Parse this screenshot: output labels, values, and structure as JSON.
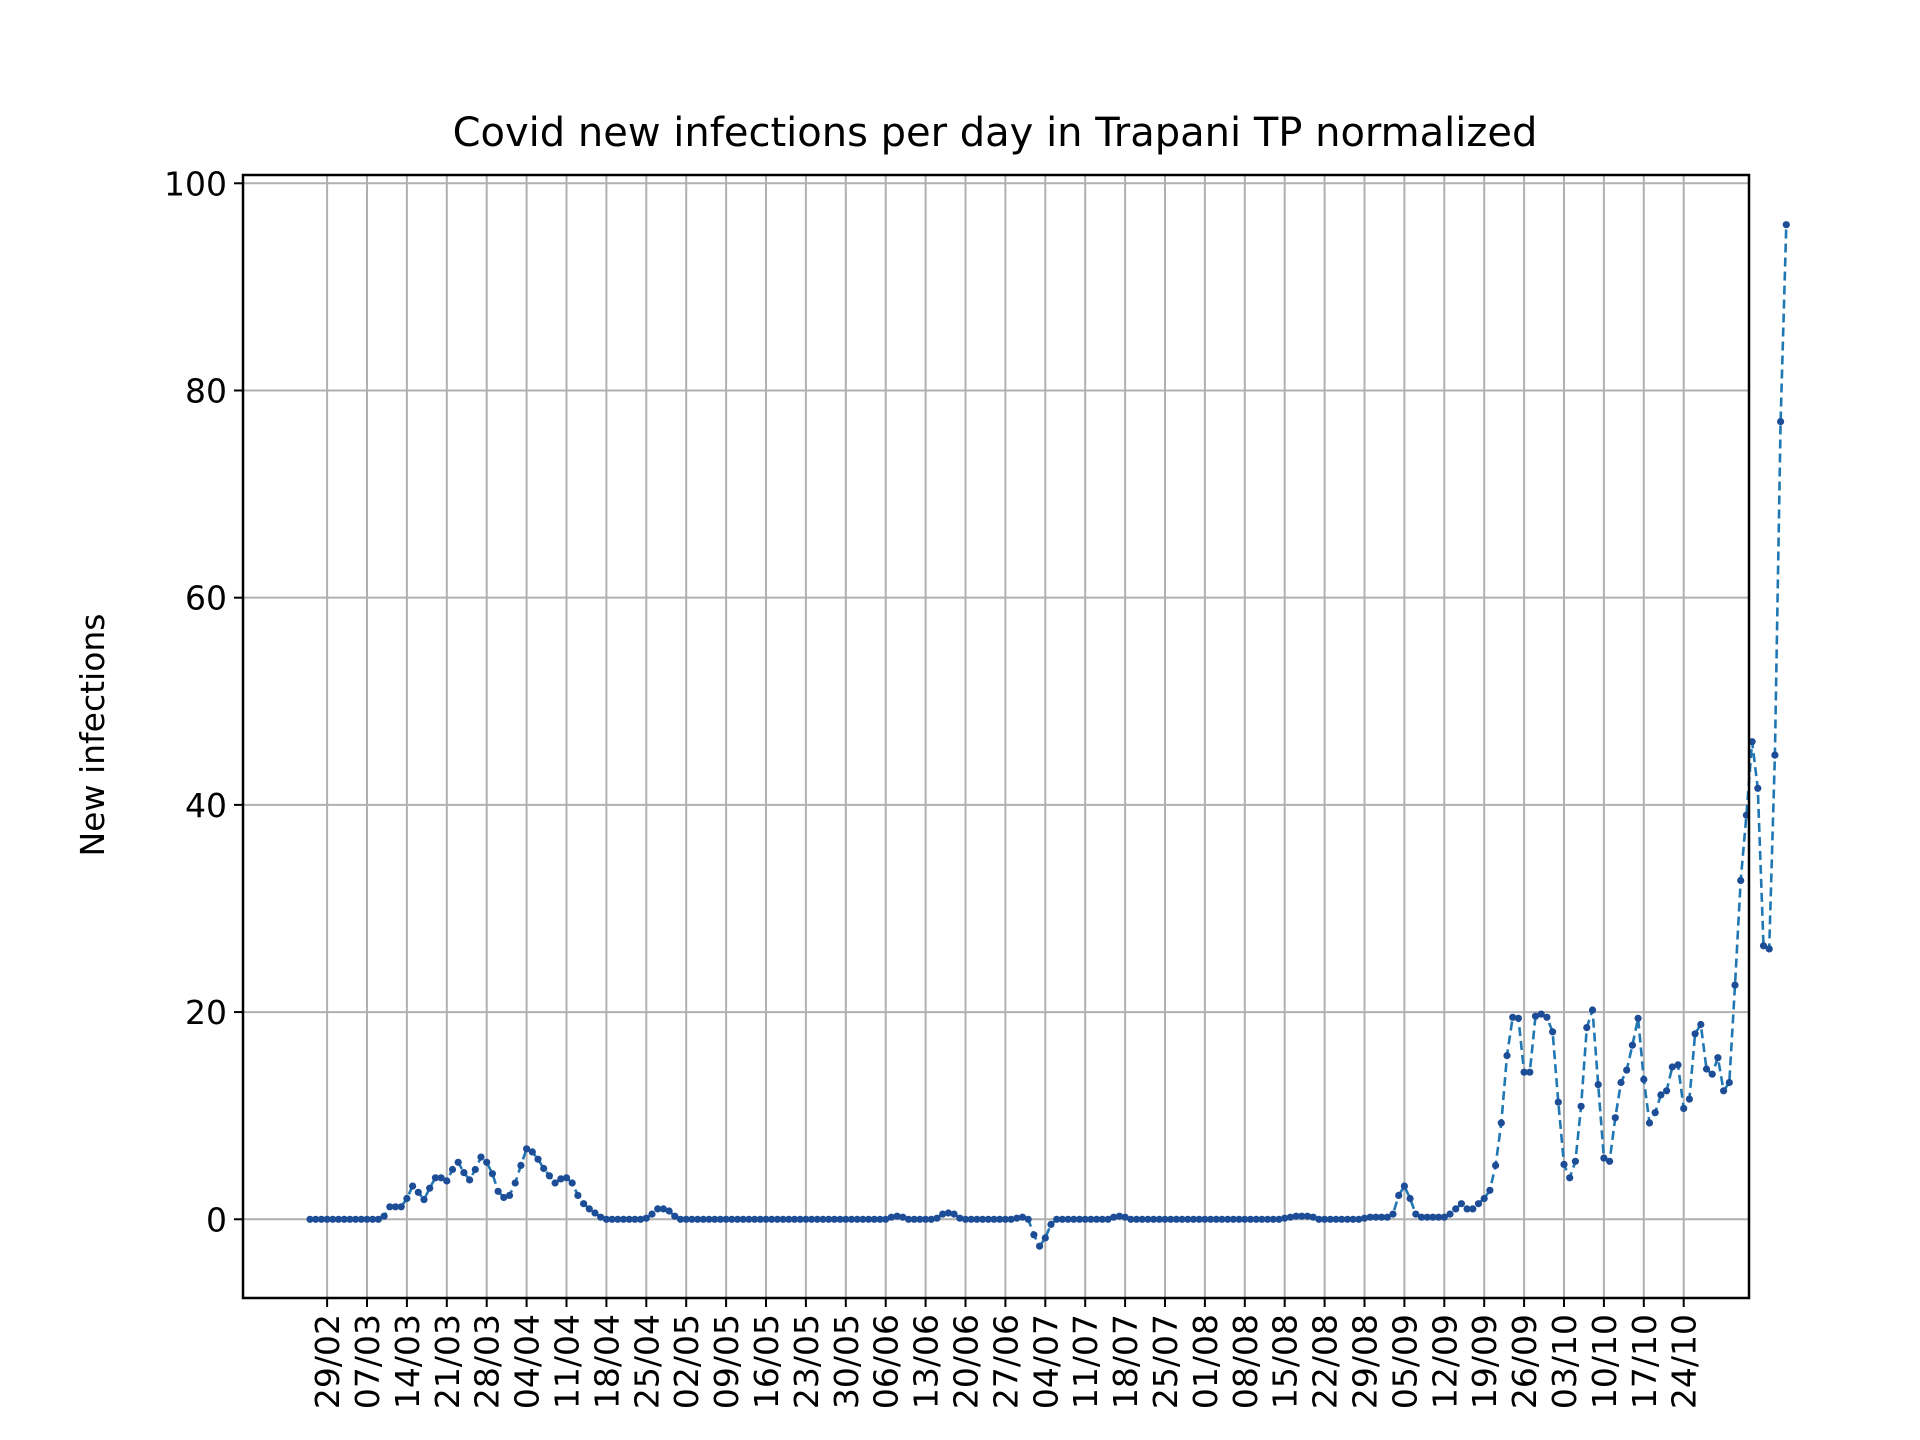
{
  "chart_data": {
    "type": "line",
    "title": "Covid new infections per day in Trapani TP normalized",
    "xlabel": "",
    "ylabel": "New infections",
    "ylim": [
      -7.6,
      100.8
    ],
    "yticks": [
      0,
      20,
      40,
      60,
      80,
      100
    ],
    "grid": true,
    "line_style": "dashed",
    "marker": "dot",
    "color": "#1f77b4",
    "marker_color": "#1c4d96",
    "start_date": "2020-02-26",
    "x_tick_labels": [
      "29/02",
      "07/03",
      "14/03",
      "21/03",
      "28/03",
      "04/04",
      "11/04",
      "18/04",
      "25/04",
      "02/05",
      "09/05",
      "16/05",
      "23/05",
      "30/05",
      "06/06",
      "13/06",
      "20/06",
      "27/06",
      "04/07",
      "11/07",
      "18/07",
      "25/07",
      "01/08",
      "08/08",
      "15/08",
      "22/08",
      "29/08",
      "05/09",
      "12/09",
      "19/09",
      "26/09",
      "03/10",
      "10/10",
      "17/10",
      "24/10"
    ],
    "series": [
      {
        "name": "",
        "values": [
          0,
          0,
          0,
          0,
          0,
          0,
          0,
          0,
          0,
          0,
          0,
          0,
          0,
          0.3,
          1.2,
          1.2,
          1.2,
          2.0,
          3.2,
          2.6,
          1.9,
          3.0,
          4.0,
          4.0,
          3.7,
          4.8,
          5.5,
          4.5,
          3.8,
          4.8,
          6.0,
          5.5,
          4.4,
          2.7,
          2.1,
          2.3,
          3.5,
          5.2,
          6.8,
          6.5,
          5.8,
          4.9,
          4.2,
          3.5,
          3.9,
          4.0,
          3.5,
          2.3,
          1.5,
          1.0,
          0.6,
          0.2,
          0,
          0,
          0,
          0,
          0,
          0,
          0,
          0.1,
          0.5,
          1.0,
          1.0,
          0.8,
          0.3,
          0,
          0,
          0,
          0,
          0,
          0,
          0,
          0,
          0,
          0,
          0,
          0,
          0,
          0,
          0,
          0,
          0,
          0,
          0,
          0,
          0,
          0,
          0,
          0,
          0,
          0,
          0,
          0,
          0,
          0,
          0,
          0,
          0,
          0,
          0,
          0,
          0,
          0.2,
          0.3,
          0.2,
          0,
          0,
          0,
          0,
          0,
          0.1,
          0.5,
          0.6,
          0.5,
          0.1,
          0,
          0,
          0,
          0,
          0,
          0,
          0,
          0,
          0,
          0.1,
          0.2,
          0,
          -1.5,
          -2.6,
          -1.8,
          -0.5,
          0,
          0,
          0,
          0,
          0,
          0,
          0,
          0,
          0,
          0,
          0.2,
          0.3,
          0.2,
          0,
          0,
          0,
          0,
          0,
          0,
          0,
          0,
          0,
          0,
          0,
          0,
          0,
          0,
          0,
          0,
          0,
          0,
          0,
          0,
          0,
          0,
          0,
          0,
          0,
          0,
          0,
          0.1,
          0.2,
          0.3,
          0.3,
          0.3,
          0.2,
          0,
          0,
          0,
          0,
          0,
          0,
          0,
          0,
          0.1,
          0.2,
          0.2,
          0.2,
          0.2,
          0.5,
          2.3,
          3.2,
          2.0,
          0.5,
          0.2,
          0.2,
          0.2,
          0.2,
          0.2,
          0.5,
          1.0,
          1.5,
          1.0,
          1.0,
          1.5,
          2.0,
          2.8,
          5.2,
          9.3,
          15.8,
          19.5,
          19.4,
          14.2,
          14.2,
          19.6,
          19.8,
          19.5,
          18.1,
          11.3,
          5.3,
          4.0,
          5.6,
          10.9,
          18.5,
          20.2,
          13.0,
          5.9,
          5.6,
          9.8,
          13.2,
          14.4,
          16.8,
          19.4,
          13.5,
          9.3,
          10.3,
          12.0,
          12.4,
          14.7,
          14.9,
          10.7,
          11.6,
          17.9,
          18.8,
          14.5,
          14.0,
          15.6,
          12.4,
          13.2,
          22.6,
          32.7,
          39.0,
          46.1,
          41.6,
          26.4,
          26.1,
          44.8,
          77.0,
          96.0
        ]
      }
    ]
  }
}
